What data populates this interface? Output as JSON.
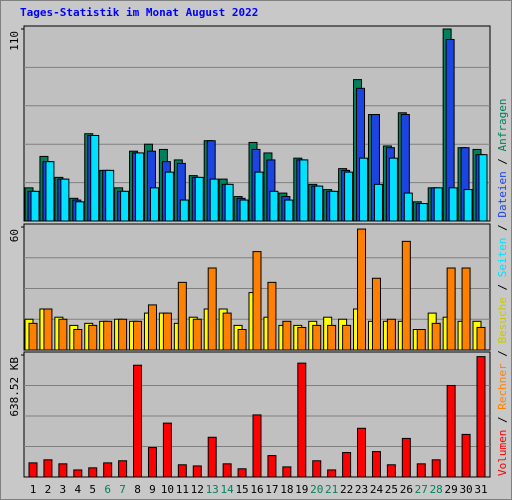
{
  "chart_data": [
    {
      "type": "bar",
      "title": "Tages-Statistik im Monat August 2022",
      "legend_separator": " / ",
      "ylim": [
        0,
        110
      ],
      "yticks": [
        110
      ],
      "grid_divisions": 5,
      "series": [
        {
          "name": "Anfragen",
          "color": "#00805c",
          "values": [
            19,
            37,
            25,
            13,
            50,
            29,
            19,
            40,
            44,
            41,
            35,
            26,
            46,
            24,
            14,
            45,
            39,
            16,
            36,
            21,
            18,
            30,
            81,
            61,
            43,
            62,
            11,
            19,
            110,
            42,
            41
          ]
        },
        {
          "name": "Dateien",
          "color": "#1c44e0",
          "values": [
            17,
            34,
            24,
            12,
            49,
            29,
            17,
            39,
            40,
            34,
            33,
            25,
            46,
            21,
            13,
            41,
            35,
            14,
            35,
            20,
            17,
            29,
            76,
            61,
            42,
            61,
            10,
            19,
            104,
            42,
            38
          ]
        },
        {
          "name": "Seiten",
          "color": "#00e0ff",
          "values": [
            17,
            34,
            24,
            11,
            49,
            29,
            17,
            39,
            19,
            28,
            12,
            25,
            24,
            21,
            12,
            28,
            17,
            12,
            35,
            20,
            17,
            28,
            36,
            21,
            36,
            16,
            10,
            19,
            19,
            18,
            38
          ]
        }
      ]
    },
    {
      "type": "bar",
      "ylim": [
        0,
        60
      ],
      "yticks": [
        60
      ],
      "grid_divisions": 4,
      "series": [
        {
          "name": "Besuche",
          "color": "#ffff00",
          "values": [
            15,
            20,
            16,
            12,
            13,
            14,
            15,
            14,
            18,
            18,
            13,
            16,
            20,
            20,
            12,
            28,
            16,
            12,
            12,
            14,
            16,
            15,
            20,
            14,
            14,
            14,
            10,
            18,
            16,
            14,
            14
          ]
        },
        {
          "name": "Rechner",
          "color": "#ff8000",
          "values": [
            13,
            20,
            15,
            10,
            12,
            14,
            15,
            14,
            22,
            18,
            33,
            15,
            40,
            18,
            10,
            48,
            33,
            14,
            11,
            12,
            12,
            12,
            59,
            35,
            15,
            53,
            10,
            13,
            40,
            40,
            11
          ]
        }
      ]
    },
    {
      "type": "bar",
      "ylim": [
        0,
        638.52
      ],
      "yticks": [
        {
          "value": 638.52,
          "label": "638.52 KB"
        }
      ],
      "grid_divisions": 4,
      "categories": [
        "1",
        "2",
        "3",
        "4",
        "5",
        "6",
        "7",
        "8",
        "9",
        "10",
        "11",
        "12",
        "13",
        "14",
        "15",
        "16",
        "17",
        "18",
        "19",
        "20",
        "21",
        "22",
        "23",
        "24",
        "25",
        "26",
        "27",
        "28",
        "29",
        "30",
        "31"
      ],
      "category_colors": [
        "#000000",
        "#000000",
        "#000000",
        "#000000",
        "#000000",
        "#00805c",
        "#00805c",
        "#000000",
        "#000000",
        "#000000",
        "#000000",
        "#000000",
        "#00805c",
        "#00805c",
        "#000000",
        "#000000",
        "#000000",
        "#000000",
        "#000000",
        "#00805c",
        "#00805c",
        "#000000",
        "#000000",
        "#000000",
        "#000000",
        "#000000",
        "#00805c",
        "#00805c",
        "#000000",
        "#000000",
        "#000000"
      ],
      "series": [
        {
          "name": "Volumen",
          "color": "#ff0000",
          "values": [
            74,
            90,
            69,
            37,
            48,
            74,
            85,
            585,
            154,
            282,
            64,
            58,
            208,
            69,
            43,
            325,
            112,
            53,
            596,
            85,
            37,
            128,
            255,
            133,
            64,
            202,
            69,
            90,
            479,
            223,
            630
          ]
        }
      ]
    }
  ]
}
